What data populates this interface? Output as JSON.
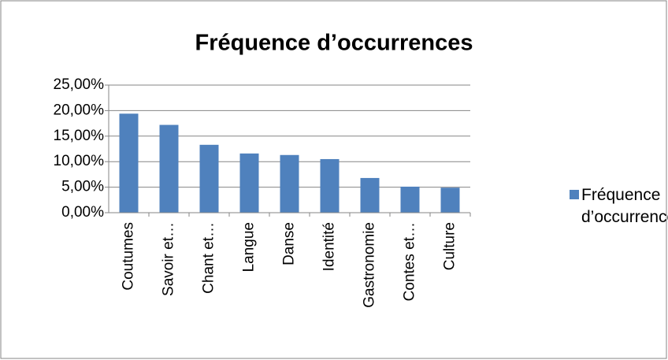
{
  "chart_data": {
    "type": "bar",
    "title": "Fréquence d’occurrences",
    "categories": [
      "Coutumes",
      "Savoir et…",
      "Chant et…",
      "Langue",
      "Danse",
      "Identité",
      "Gastronomie",
      "Contes et…",
      "Culture"
    ],
    "series": [
      {
        "name": "Fréquence d’occurrences",
        "color": "#4f81bd",
        "values": [
          19.4,
          17.2,
          13.3,
          11.6,
          11.3,
          10.5,
          6.8,
          5.1,
          4.9
        ]
      }
    ],
    "ylim": [
      0,
      25
    ],
    "yticks": [
      {
        "value": 0,
        "label": "0,00%"
      },
      {
        "value": 5,
        "label": "5,00%"
      },
      {
        "value": 10,
        "label": "10,00%"
      },
      {
        "value": 15,
        "label": "15,00%"
      },
      {
        "value": 20,
        "label": "20,00%"
      },
      {
        "value": 25,
        "label": "25,00%"
      }
    ],
    "grid": true,
    "legend": "right"
  }
}
